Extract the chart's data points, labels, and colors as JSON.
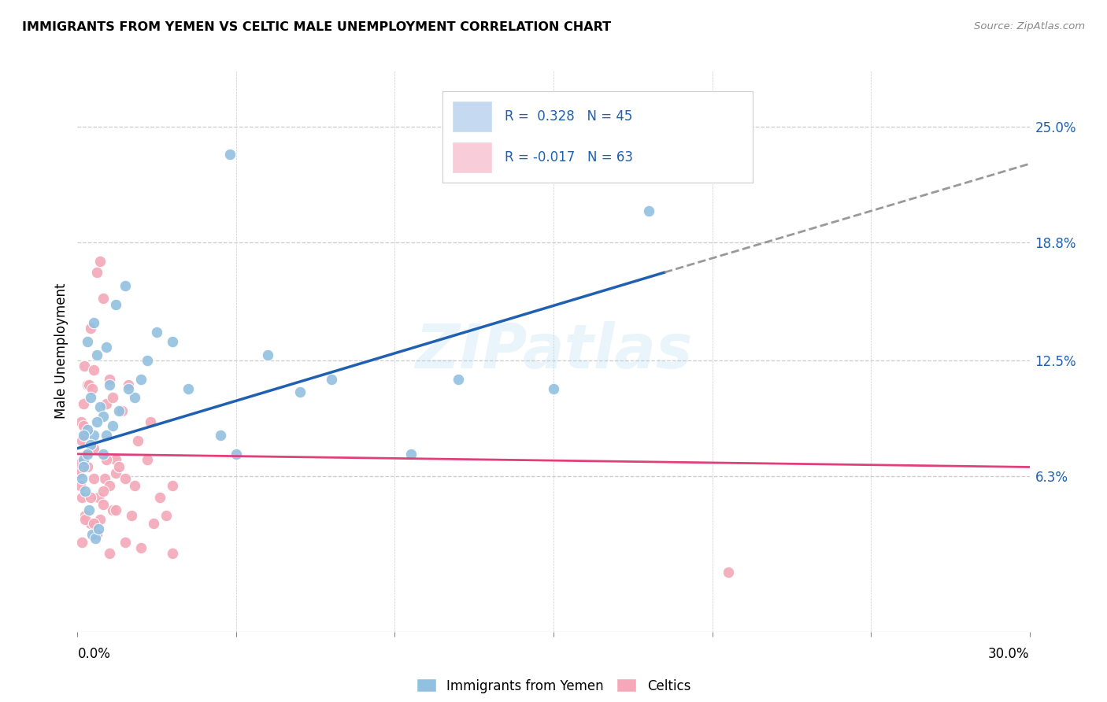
{
  "title": "IMMIGRANTS FROM YEMEN VS CELTIC MALE UNEMPLOYMENT CORRELATION CHART",
  "source": "Source: ZipAtlas.com",
  "ylabel": "Male Unemployment",
  "y_ticks": [
    6.3,
    12.5,
    18.8,
    25.0
  ],
  "y_tick_labels": [
    "6.3%",
    "12.5%",
    "18.8%",
    "25.0%"
  ],
  "x_min": 0.0,
  "x_max": 30.0,
  "y_min": -2.0,
  "y_max": 28.0,
  "color_blue": "#92c0e0",
  "color_pink": "#f4a8b8",
  "trendline_blue": "#2060b0",
  "trendline_pink": "#e0407a",
  "trendline_gray": "#999999",
  "legend_box_blue": "#c5daf0",
  "legend_box_pink": "#f8ccd8",
  "blue_trend_x0": 0.0,
  "blue_trend_y0": 7.8,
  "blue_trend_x1": 18.5,
  "blue_trend_y1": 17.2,
  "blue_dash_x0": 18.5,
  "blue_dash_y0": 17.2,
  "blue_dash_x1": 30.0,
  "blue_dash_y1": 23.0,
  "pink_trend_x0": 0.0,
  "pink_trend_y0": 7.5,
  "pink_trend_x1": 30.0,
  "pink_trend_y1": 6.8,
  "scatter_blue_x": [
    4.8,
    0.5,
    0.3,
    1.2,
    0.6,
    0.4,
    0.9,
    1.0,
    0.7,
    0.8,
    0.5,
    0.6,
    0.3,
    0.4,
    0.2,
    1.5,
    2.5,
    3.0,
    2.0,
    1.8,
    1.3,
    1.1,
    0.9,
    1.6,
    2.2,
    3.5,
    4.5,
    5.0,
    6.0,
    7.0,
    8.0,
    10.5,
    12.0,
    15.0,
    18.0,
    0.2,
    0.3,
    0.8,
    0.2,
    0.15,
    0.25,
    0.35,
    0.45,
    0.55,
    0.65
  ],
  "scatter_blue_y": [
    23.5,
    14.5,
    13.5,
    15.5,
    12.8,
    10.5,
    13.2,
    11.2,
    10.0,
    9.5,
    8.5,
    9.2,
    8.8,
    8.0,
    7.2,
    16.5,
    14.0,
    13.5,
    11.5,
    10.5,
    9.8,
    9.0,
    8.5,
    11.0,
    12.5,
    11.0,
    8.5,
    7.5,
    12.8,
    10.8,
    11.5,
    7.5,
    11.5,
    11.0,
    20.5,
    8.5,
    7.5,
    7.5,
    6.8,
    6.2,
    5.5,
    4.5,
    3.2,
    3.0,
    3.5
  ],
  "scatter_pink_x": [
    0.05,
    0.1,
    0.15,
    0.08,
    0.12,
    0.2,
    0.25,
    0.3,
    0.18,
    0.22,
    0.28,
    0.35,
    0.4,
    0.45,
    0.5,
    0.6,
    0.7,
    0.8,
    0.9,
    1.0,
    1.1,
    1.2,
    1.4,
    1.6,
    0.15,
    0.25,
    0.4,
    0.55,
    0.7,
    0.85,
    1.0,
    1.2,
    1.5,
    1.8,
    2.2,
    2.6,
    3.0,
    0.3,
    0.5,
    0.65,
    0.8,
    1.1,
    1.3,
    1.9,
    2.3,
    2.8,
    0.25,
    0.5,
    0.9,
    0.15,
    0.6,
    1.0,
    1.5,
    2.0,
    3.0,
    0.4,
    0.5,
    0.6,
    0.8,
    1.2,
    1.7,
    2.4,
    20.5
  ],
  "scatter_pink_y": [
    6.5,
    7.0,
    8.2,
    5.8,
    9.2,
    9.0,
    8.5,
    11.2,
    10.2,
    12.2,
    7.5,
    11.2,
    14.2,
    11.0,
    12.0,
    17.2,
    17.8,
    15.8,
    10.2,
    11.5,
    10.5,
    7.2,
    9.8,
    11.2,
    5.2,
    4.2,
    3.8,
    3.2,
    4.0,
    6.2,
    5.8,
    6.5,
    6.2,
    5.8,
    7.2,
    5.2,
    5.8,
    6.8,
    7.8,
    5.2,
    5.5,
    4.5,
    6.8,
    8.2,
    9.2,
    4.2,
    4.0,
    6.2,
    7.2,
    2.8,
    3.2,
    2.2,
    2.8,
    2.5,
    2.2,
    5.2,
    3.8,
    3.2,
    4.8,
    4.5,
    4.2,
    3.8,
    1.2
  ]
}
